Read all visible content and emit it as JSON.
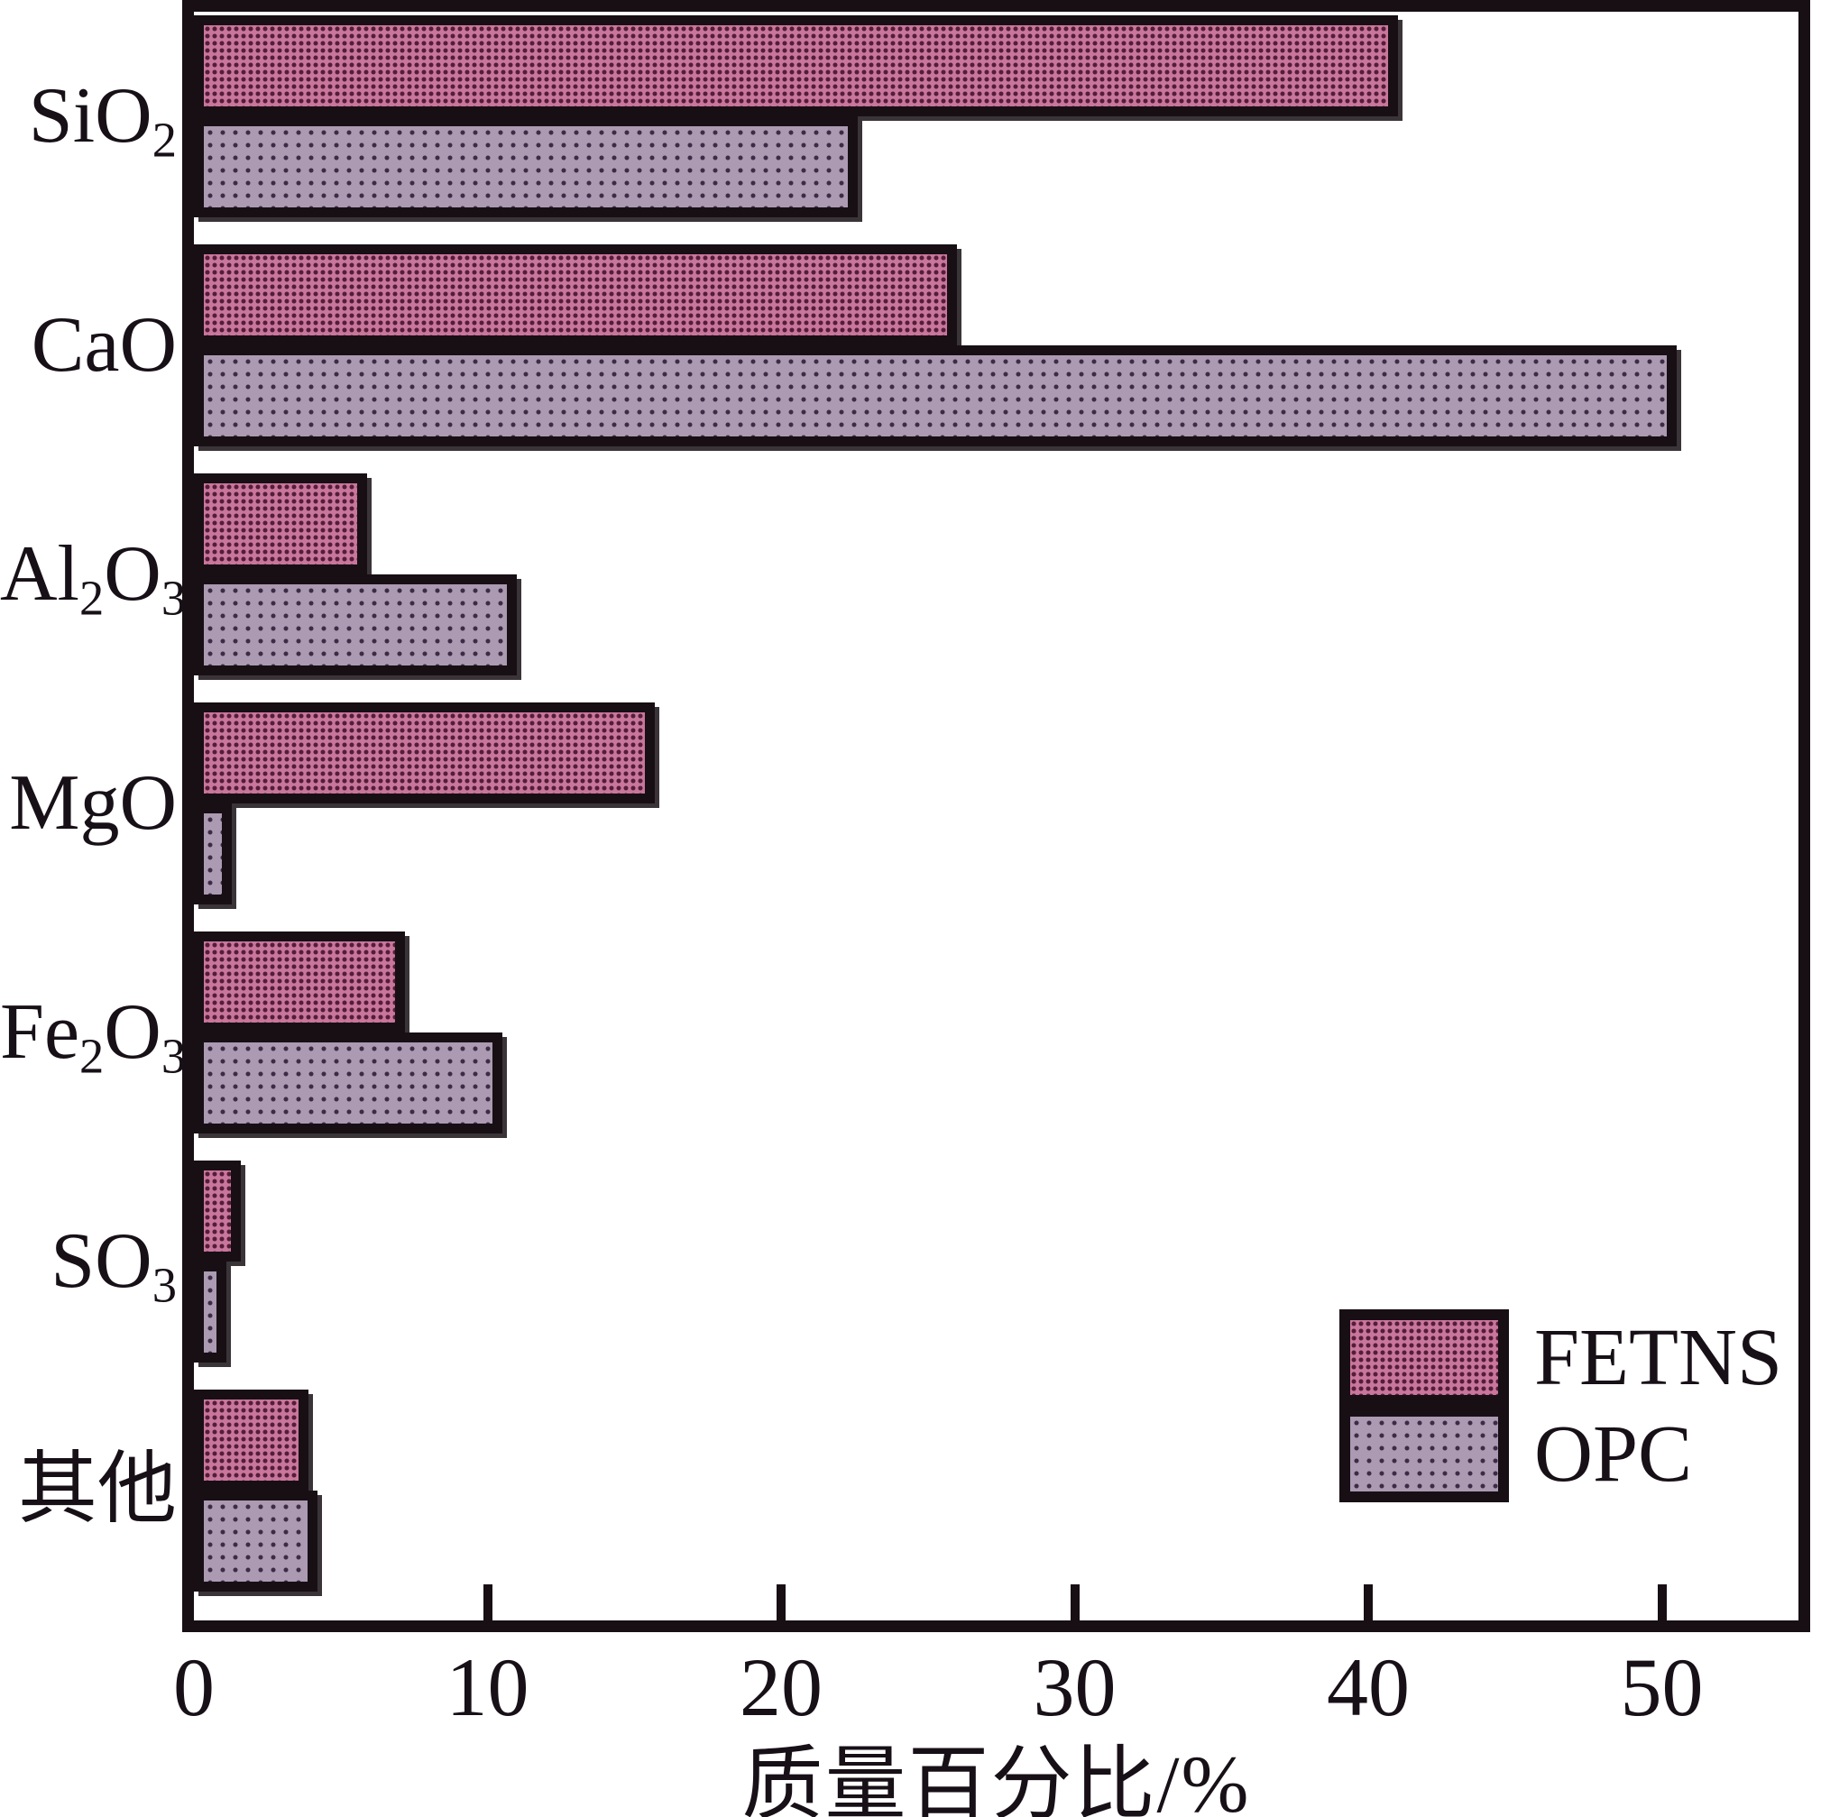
{
  "chart_data": {
    "type": "bar",
    "orientation": "horizontal",
    "title": "",
    "xlabel": "质量百分比/%",
    "ylabel": "",
    "xlim": [
      0,
      54.6
    ],
    "xticks": [
      0,
      10,
      20,
      30,
      40,
      50
    ],
    "grid": false,
    "legend_position": "inside-right-lower",
    "frame": true,
    "categories": [
      {
        "name": "SiO2",
        "segments": [
          {
            "text": "SiO"
          },
          {
            "text": "2",
            "subscript": true
          }
        ]
      },
      {
        "name": "CaO",
        "segments": [
          {
            "text": "CaO"
          }
        ]
      },
      {
        "name": "Al2O3",
        "segments": [
          {
            "text": "Al"
          },
          {
            "text": "2",
            "subscript": true
          },
          {
            "text": "O"
          },
          {
            "text": "3",
            "subscript": true
          }
        ]
      },
      {
        "name": "MgO",
        "segments": [
          {
            "text": "MgO"
          }
        ]
      },
      {
        "name": "Fe2O3",
        "segments": [
          {
            "text": "Fe"
          },
          {
            "text": "2",
            "subscript": true
          },
          {
            "text": "O"
          },
          {
            "text": "3",
            "subscript": true
          }
        ]
      },
      {
        "name": "SO3",
        "segments": [
          {
            "text": "SO"
          },
          {
            "text": "3",
            "subscript": true
          }
        ]
      },
      {
        "name": "其他",
        "segments": [
          {
            "text": "其他"
          }
        ]
      }
    ],
    "series": [
      {
        "name": "FETNS",
        "color": "#c9769c",
        "pattern": {
          "dot_color": "#541d38",
          "dot_size": 2.2,
          "spacing": 8
        },
        "values": [
          41.0,
          26.0,
          5.9,
          15.7,
          7.2,
          1.6,
          3.9
        ]
      },
      {
        "name": "OPC",
        "color": "#ab9ab2",
        "pattern": {
          "dot_color": "#3d2a45",
          "dot_size": 2.2,
          "spacing": 14
        },
        "values": [
          22.6,
          50.5,
          11.0,
          1.3,
          10.5,
          1.1,
          4.2
        ]
      }
    ],
    "colors": {
      "axis": "#170f14",
      "text": "#171017",
      "background": "#ffffff"
    }
  }
}
